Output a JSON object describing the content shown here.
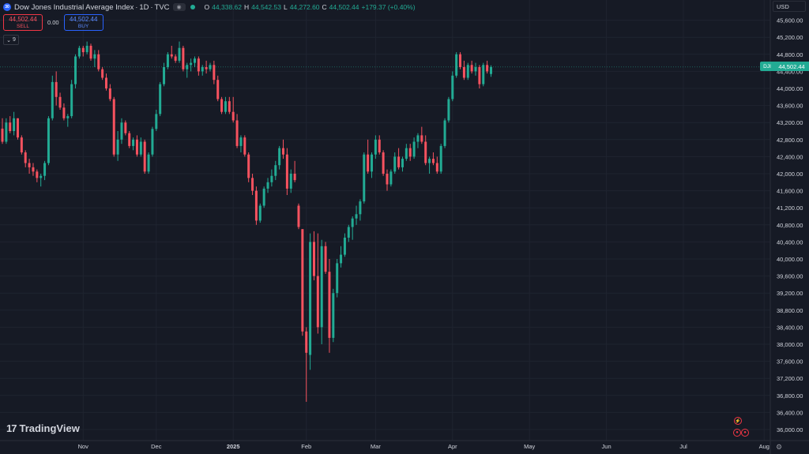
{
  "header": {
    "symbol_badge": "30",
    "title": "Dow Jones Industrial Average Index",
    "interval": "1D",
    "exchange": "TVC",
    "sep": "·",
    "ohlc": {
      "o_label": "O",
      "o_value": "44,338.62",
      "h_label": "H",
      "h_value": "44,542.53",
      "l_label": "L",
      "l_value": "44,272.60",
      "c_label": "C",
      "c_value": "44,502.44",
      "change": "+179.37 (+0.40%)"
    }
  },
  "trade": {
    "sell_price": "44,502.44",
    "sell_label": "SELL",
    "spread": "0.00",
    "buy_price": "44,502.44",
    "buy_label": "BUY"
  },
  "indicator_toggle": "9",
  "currency": "USD",
  "price_tag": {
    "symbol": "DJI",
    "value": "44,502.44"
  },
  "brand": "TradingView",
  "colors": {
    "background": "#161a25",
    "up": "#22ab94",
    "down": "#f7525f",
    "grid": "#1f2430",
    "text": "#d1d4dc"
  },
  "chart_data": {
    "type": "candlestick",
    "y_ticks": [
      "45,600.00",
      "45,200.00",
      "44,800.00",
      "44,400.00",
      "44,000.00",
      "43,600.00",
      "43,200.00",
      "42,800.00",
      "42,400.00",
      "42,000.00",
      "41,600.00",
      "41,200.00",
      "40,800.00",
      "40,400.00",
      "40,000.00",
      "39,600.00",
      "39,200.00",
      "38,800.00",
      "38,400.00",
      "38,000.00",
      "37,600.00",
      "37,200.00",
      "36,800.00",
      "36,400.00",
      "36,000.00"
    ],
    "ylim": [
      35950,
      45950
    ],
    "x_labels": [
      "Nov",
      "Dec",
      "2025",
      "Feb",
      "Mar",
      "Apr",
      "May",
      "Jun",
      "Jul",
      "Aug"
    ],
    "x_label_index": [
      21,
      40,
      60,
      79,
      97,
      117,
      137,
      157,
      177,
      198
    ],
    "last_price": 44502.44,
    "grid": true,
    "candles": [
      [
        43057,
        43300,
        42700,
        42750
      ],
      [
        42750,
        43300,
        42700,
        43200
      ],
      [
        43200,
        43350,
        42950,
        43000
      ],
      [
        43000,
        43450,
        42900,
        43300
      ],
      [
        43300,
        43300,
        42800,
        42850
      ],
      [
        42850,
        42900,
        42450,
        42500
      ],
      [
        42500,
        42550,
        42150,
        42250
      ],
      [
        42250,
        42350,
        42000,
        42150
      ],
      [
        42150,
        42250,
        41950,
        42050
      ],
      [
        42050,
        42100,
        41800,
        41900
      ],
      [
        41900,
        42000,
        41700,
        41950
      ],
      [
        41950,
        42300,
        41850,
        42250
      ],
      [
        42250,
        43350,
        42200,
        43300
      ],
      [
        43300,
        44300,
        43250,
        44150
      ],
      [
        44150,
        44400,
        43600,
        43800
      ],
      [
        43800,
        43900,
        43500,
        43550
      ],
      [
        43550,
        43650,
        43250,
        43300
      ],
      [
        43300,
        43400,
        43100,
        43350
      ],
      [
        43350,
        44200,
        43300,
        44100
      ],
      [
        44100,
        44800,
        44000,
        44750
      ],
      [
        44750,
        45000,
        44700,
        44950
      ],
      [
        44950,
        45000,
        44750,
        44850
      ],
      [
        44850,
        45100,
        44800,
        45000
      ],
      [
        45000,
        45050,
        44650,
        44700
      ],
      [
        44700,
        44900,
        44500,
        44800
      ],
      [
        44800,
        44900,
        44400,
        44450
      ],
      [
        44450,
        44500,
        44200,
        44250
      ],
      [
        44250,
        44350,
        43950,
        44000
      ],
      [
        44000,
        44100,
        43700,
        43750
      ],
      [
        43750,
        43800,
        42400,
        42450
      ],
      [
        42450,
        43000,
        42300,
        42800
      ],
      [
        42800,
        43300,
        42700,
        43200
      ],
      [
        43200,
        43250,
        42900,
        42950
      ],
      [
        42950,
        43000,
        42600,
        42650
      ],
      [
        42650,
        42850,
        42550,
        42800
      ],
      [
        42800,
        42900,
        42400,
        42450
      ],
      [
        42450,
        42850,
        42400,
        42750
      ],
      [
        42750,
        42800,
        42000,
        42050
      ],
      [
        42050,
        42500,
        42000,
        42450
      ],
      [
        42450,
        43100,
        42400,
        43050
      ],
      [
        43050,
        43500,
        43000,
        43400
      ],
      [
        43400,
        44150,
        43350,
        44100
      ],
      [
        44100,
        44600,
        44050,
        44500
      ],
      [
        44500,
        44850,
        44450,
        44800
      ],
      [
        44800,
        45000,
        44700,
        44750
      ],
      [
        44750,
        44800,
        44600,
        44650
      ],
      [
        44650,
        45100,
        44600,
        44950
      ],
      [
        44950,
        45000,
        44400,
        44450
      ],
      [
        44450,
        44600,
        44250,
        44550
      ],
      [
        44550,
        44700,
        44400,
        44600
      ],
      [
        44600,
        44750,
        44500,
        44700
      ],
      [
        44700,
        44750,
        44300,
        44400
      ],
      [
        44400,
        44550,
        44300,
        44500
      ],
      [
        44500,
        44650,
        44350,
        44450
      ],
      [
        44450,
        44600,
        44400,
        44550
      ],
      [
        44550,
        44650,
        44100,
        44200
      ],
      [
        44200,
        44300,
        43700,
        43750
      ],
      [
        43750,
        43800,
        43400,
        43450
      ],
      [
        43450,
        43800,
        43400,
        43700
      ],
      [
        43700,
        43800,
        43400,
        43450
      ],
      [
        43450,
        43800,
        43200,
        43250
      ],
      [
        43250,
        43400,
        42600,
        42650
      ],
      [
        42650,
        42900,
        42500,
        42850
      ],
      [
        42850,
        42900,
        42400,
        42450
      ],
      [
        42450,
        42500,
        41800,
        41900
      ],
      [
        41900,
        42000,
        41500,
        41600
      ],
      [
        41600,
        41700,
        40800,
        40900
      ],
      [
        40900,
        41300,
        40850,
        41250
      ],
      [
        41250,
        41700,
        41200,
        41650
      ],
      [
        41650,
        41900,
        41550,
        41800
      ],
      [
        41800,
        42100,
        41700,
        41950
      ],
      [
        41950,
        42300,
        41850,
        42200
      ],
      [
        42200,
        42650,
        42100,
        42600
      ],
      [
        42600,
        42800,
        42350,
        42450
      ],
      [
        42450,
        42600,
        41500,
        41650
      ],
      [
        41650,
        42100,
        41550,
        42000
      ],
      [
        42000,
        42300,
        41800,
        41850
      ],
      [
        41250,
        41300,
        40700,
        40750
      ],
      [
        40700,
        40700,
        38200,
        38300
      ],
      [
        38300,
        38400,
        36650,
        37800
      ],
      [
        37750,
        40600,
        37400,
        40400
      ],
      [
        40400,
        40650,
        39500,
        39600
      ],
      [
        39600,
        40600,
        38250,
        38400
      ],
      [
        38400,
        40450,
        38000,
        40300
      ],
      [
        40300,
        40400,
        39650,
        39700
      ],
      [
        39700,
        40000,
        37800,
        38150
      ],
      [
        38150,
        39300,
        38050,
        39200
      ],
      [
        39200,
        40000,
        39100,
        39900
      ],
      [
        39900,
        40300,
        39800,
        40100
      ],
      [
        40100,
        40600,
        40050,
        40500
      ],
      [
        40500,
        40800,
        40400,
        40750
      ],
      [
        40750,
        41000,
        40450,
        40950
      ],
      [
        40950,
        41250,
        40800,
        41050
      ],
      [
        41050,
        41400,
        40900,
        41350
      ],
      [
        41350,
        42500,
        41300,
        42450
      ],
      [
        42450,
        42800,
        42000,
        42050
      ],
      [
        42050,
        42500,
        41900,
        42450
      ],
      [
        42450,
        42900,
        42350,
        42800
      ],
      [
        42800,
        42900,
        42450,
        42500
      ],
      [
        42500,
        42550,
        41950,
        42000
      ],
      [
        42000,
        42100,
        41600,
        41750
      ],
      [
        41750,
        42100,
        41700,
        42050
      ],
      [
        42050,
        42500,
        42000,
        42400
      ],
      [
        42400,
        42600,
        42100,
        42150
      ],
      [
        42150,
        42400,
        42050,
        42350
      ],
      [
        42350,
        42700,
        42300,
        42600
      ],
      [
        42600,
        42700,
        42300,
        42400
      ],
      [
        42400,
        42850,
        42350,
        42750
      ],
      [
        42750,
        42950,
        42600,
        42900
      ],
      [
        42900,
        43100,
        42700,
        42750
      ],
      [
        42750,
        42900,
        42200,
        42250
      ],
      [
        42250,
        42400,
        42000,
        42350
      ],
      [
        42350,
        42500,
        42200,
        42250
      ],
      [
        42250,
        42400,
        42000,
        42050
      ],
      [
        42050,
        42700,
        42000,
        42650
      ],
      [
        42650,
        43300,
        42600,
        43250
      ],
      [
        43250,
        43800,
        43200,
        43750
      ],
      [
        43750,
        44400,
        43700,
        44300
      ],
      [
        44300,
        44850,
        44250,
        44800
      ],
      [
        44800,
        44850,
        44450,
        44500
      ],
      [
        44500,
        44650,
        44200,
        44250
      ],
      [
        44250,
        44600,
        44200,
        44550
      ],
      [
        44550,
        44650,
        44350,
        44400
      ],
      [
        44400,
        44600,
        44300,
        44500
      ],
      [
        44500,
        44550,
        44000,
        44100
      ],
      [
        44100,
        44600,
        44050,
        44550
      ],
      [
        44550,
        44650,
        44350,
        44400
      ],
      [
        44338.62,
        44542.53,
        44272.6,
        44502.44
      ]
    ]
  }
}
